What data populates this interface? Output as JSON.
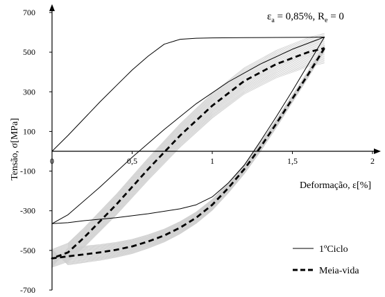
{
  "chart_data": {
    "type": "line",
    "annotation": "εa = 0,85%, Re = 0",
    "annotation_parts": {
      "eps": "ε",
      "eps_sub": "a",
      "mid": " = 0,85%, R",
      "r_sub": "e",
      "end": " = 0"
    },
    "xlabel": "Deformação, ε[%]",
    "ylabel": "Tensão, σ[MPa]",
    "xlim": [
      0,
      2
    ],
    "ylim": [
      -700,
      700
    ],
    "x_ticks": [
      0,
      0.5,
      1,
      1.5,
      2
    ],
    "x_tick_labels": [
      "0",
      "0,5",
      "1",
      "1,5",
      "2"
    ],
    "y_ticks": [
      700,
      500,
      300,
      100,
      -100,
      -300,
      -500,
      -700
    ],
    "y_tick_labels": [
      "700",
      "500",
      "300",
      "100",
      "-100",
      "-300",
      "-500",
      "-700"
    ],
    "grid": false,
    "legend_position": "bottom-right",
    "series": [
      {
        "name": "1ºCiclo",
        "style": "solid",
        "color": "#000000",
        "x": [
          0,
          0.1,
          0.2,
          0.3,
          0.4,
          0.5,
          0.6,
          0.7,
          0.8,
          0.9,
          1.0,
          1.2,
          1.4,
          1.6,
          1.7,
          1.6,
          1.5,
          1.4,
          1.3,
          1.2,
          1.1,
          1.0,
          0.9,
          0.8,
          0.6,
          0.4,
          0.2,
          0.1,
          0,
          0.1,
          0.3,
          0.5,
          0.7,
          0.9,
          1.1,
          1.3,
          1.5,
          1.7
        ],
        "y": [
          0,
          80,
          165,
          250,
          330,
          410,
          480,
          540,
          565,
          570,
          572,
          573,
          574,
          575,
          576,
          440,
          305,
          175,
          50,
          -70,
          -160,
          -230,
          -270,
          -290,
          -315,
          -335,
          -350,
          -360,
          -365,
          -320,
          -180,
          -30,
          110,
          240,
          350,
          440,
          515,
          576
        ]
      },
      {
        "name": "Meia-vida",
        "style": "dashed",
        "color": "#000000",
        "x": [
          1.7,
          1.6,
          1.5,
          1.4,
          1.3,
          1.2,
          1.1,
          1.0,
          0.9,
          0.8,
          0.7,
          0.6,
          0.5,
          0.4,
          0.3,
          0.2,
          0.1,
          0,
          0.1,
          0.2,
          0.4,
          0.6,
          0.8,
          1.0,
          1.2,
          1.4,
          1.6,
          1.7
        ],
        "y": [
          520,
          390,
          265,
          140,
          20,
          -90,
          -185,
          -270,
          -335,
          -385,
          -425,
          -455,
          -480,
          -497,
          -510,
          -520,
          -530,
          -540,
          -510,
          -435,
          -270,
          -90,
          80,
          230,
          355,
          440,
          500,
          520
        ]
      }
    ]
  },
  "legend": {
    "first": "1ºCiclo",
    "second": "Meia-vida"
  }
}
